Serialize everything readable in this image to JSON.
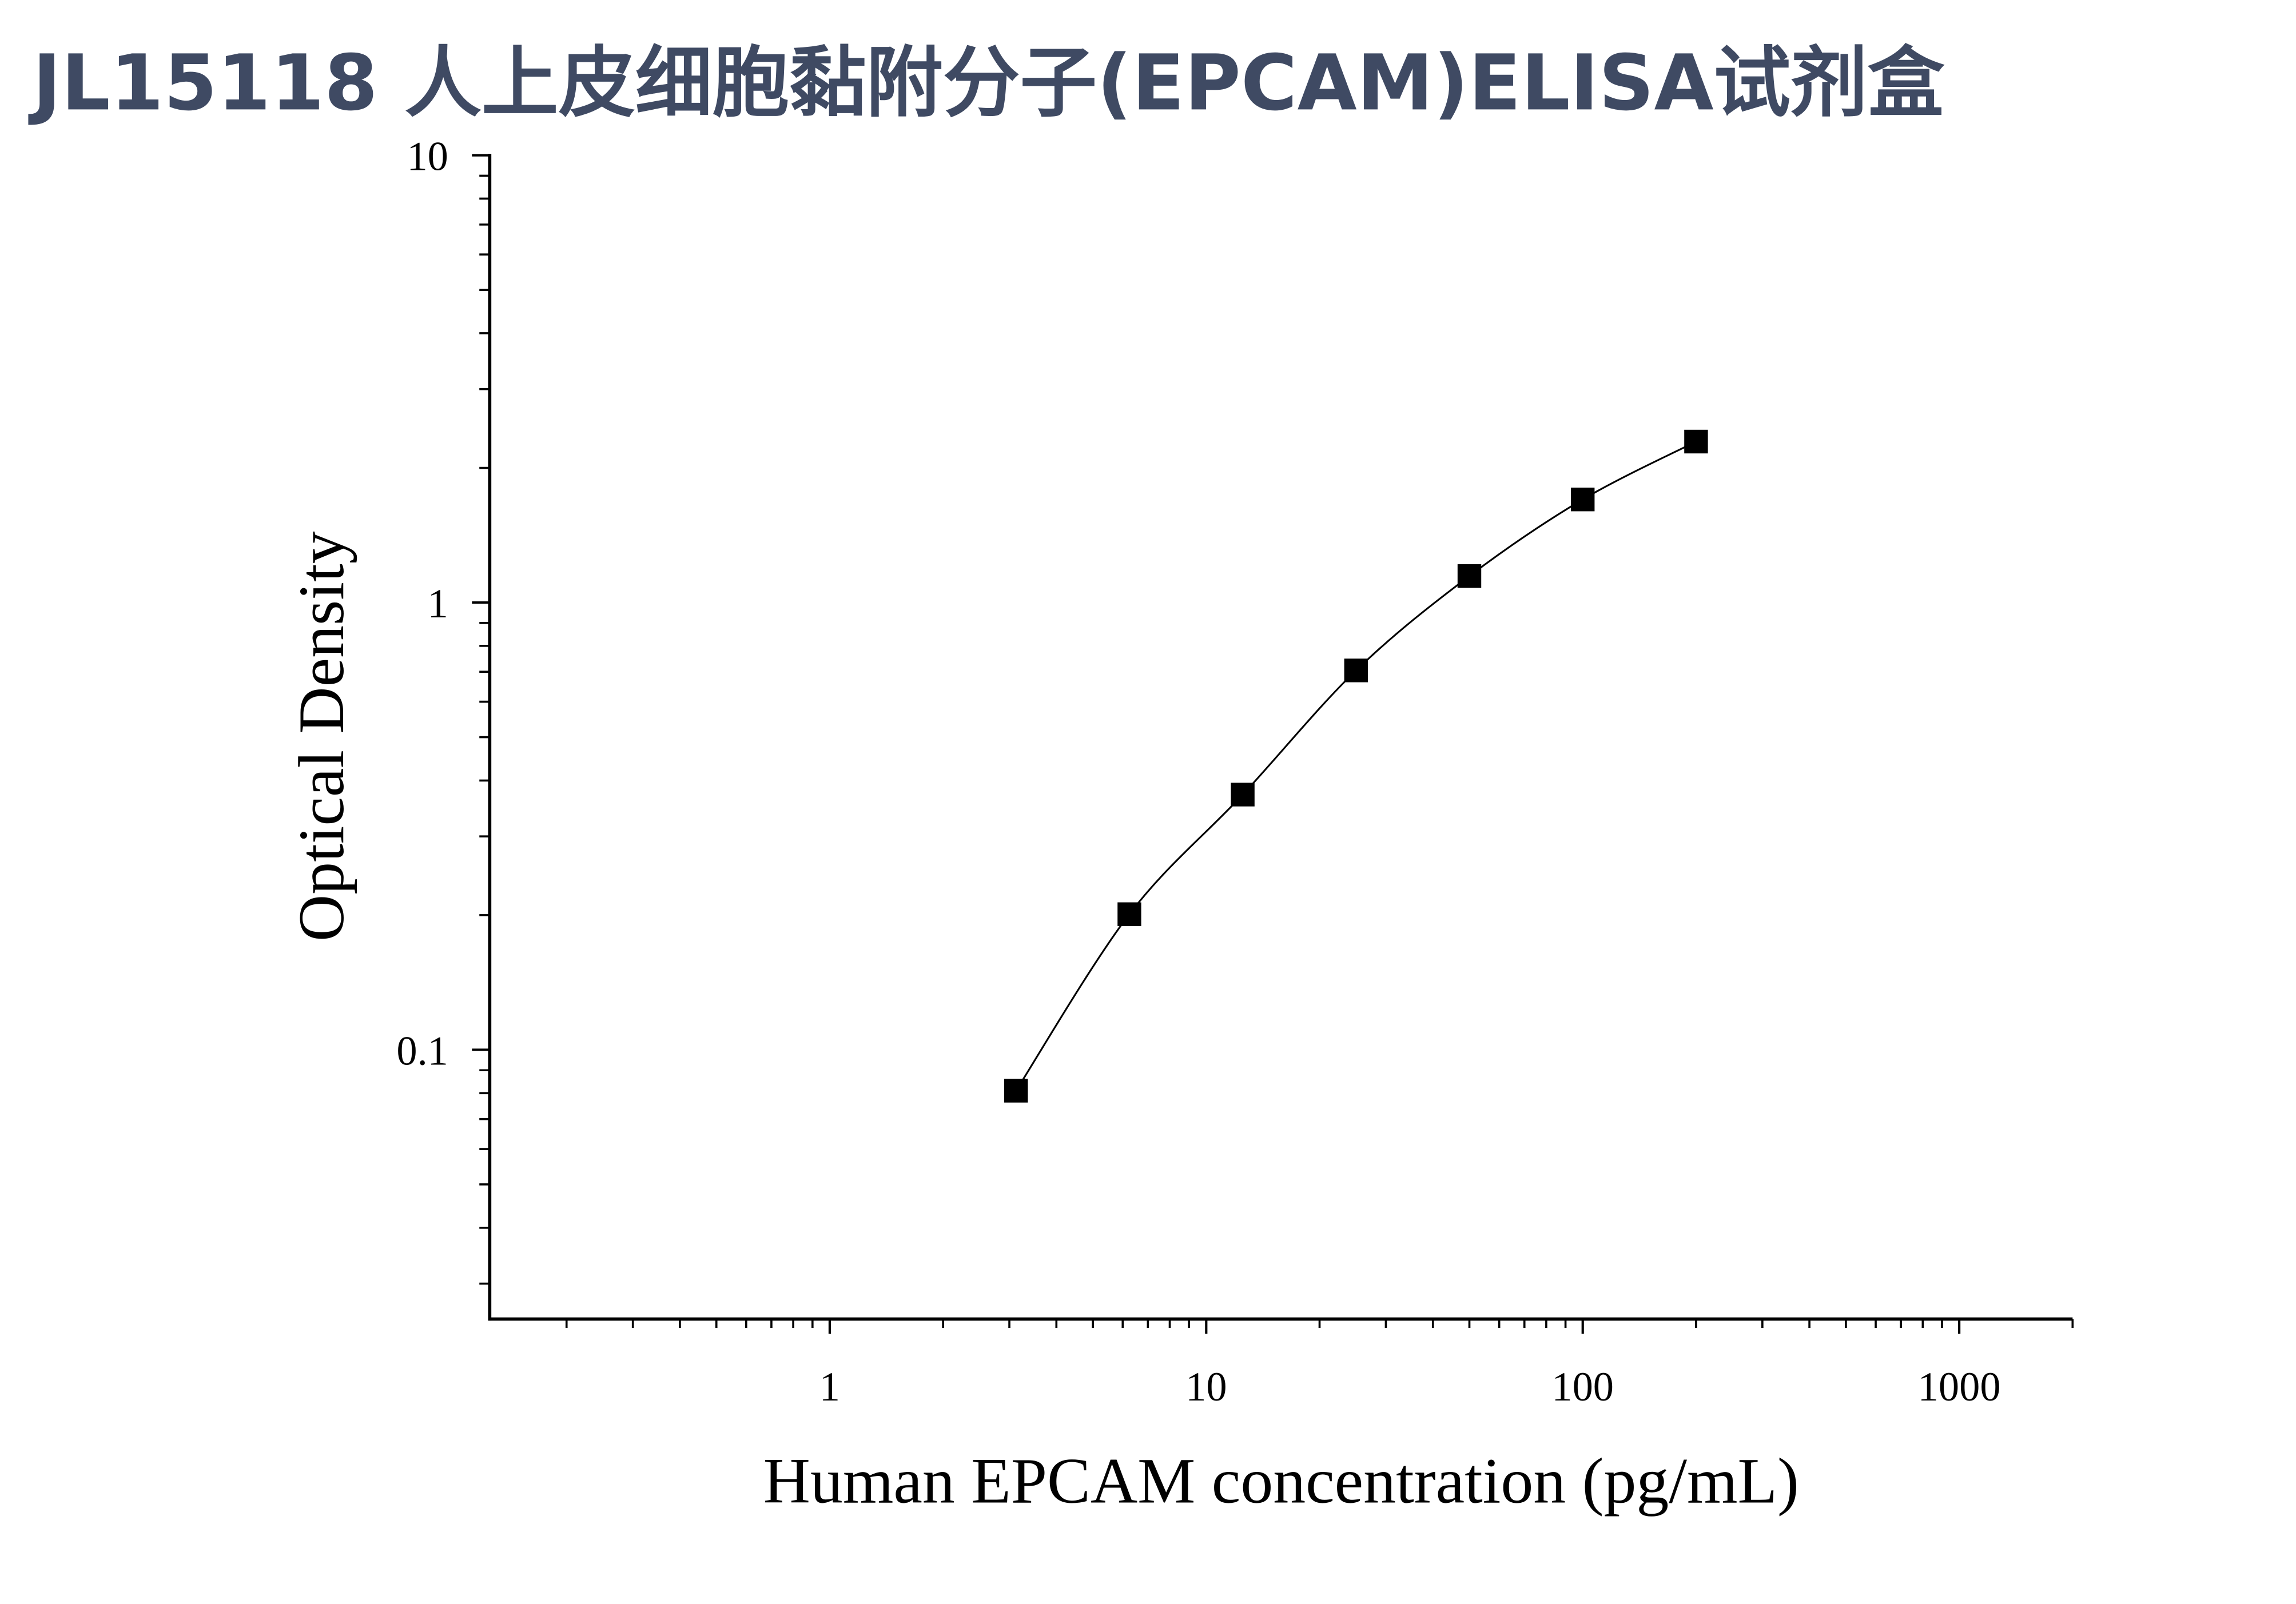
{
  "chart_data": {
    "type": "scatter",
    "title": "JL15118 人上皮细胞黏附分子(EPCAM)ELISA试剂盒",
    "x_label": "Human EPCAM concentration (pg/mL)",
    "y_label": "Optical Density",
    "x": [
      3.125,
      6.25,
      12.5,
      25,
      50,
      100,
      200
    ],
    "values": [
      0.081,
      0.201,
      0.372,
      0.705,
      1.146,
      1.7,
      2.29
    ],
    "color": "#000000",
    "line": true,
    "xscale": "log",
    "yscale": "log",
    "xlim": [
      0.125,
      2000
    ],
    "ylim": [
      0.025,
      10
    ],
    "xticks": [
      1,
      10,
      100,
      1000
    ],
    "yticks": [
      0.1,
      1,
      10
    ],
    "xminorticks": [
      0.2,
      0.3,
      0.4,
      0.5,
      0.6,
      0.7,
      0.8,
      0.9,
      2,
      3,
      4,
      5,
      6,
      7,
      8,
      9,
      20,
      30,
      40,
      50,
      60,
      70,
      80,
      90,
      200,
      300,
      400,
      500,
      600,
      700,
      800,
      900,
      2000
    ],
    "yminorticks": [
      0.03,
      0.04,
      0.05,
      0.06,
      0.07,
      0.08,
      0.09,
      0.2,
      0.3,
      0.4,
      0.5,
      0.6,
      0.7,
      0.8,
      0.9,
      2,
      3,
      4,
      5,
      6,
      7,
      8,
      9
    ],
    "grid": false
  }
}
